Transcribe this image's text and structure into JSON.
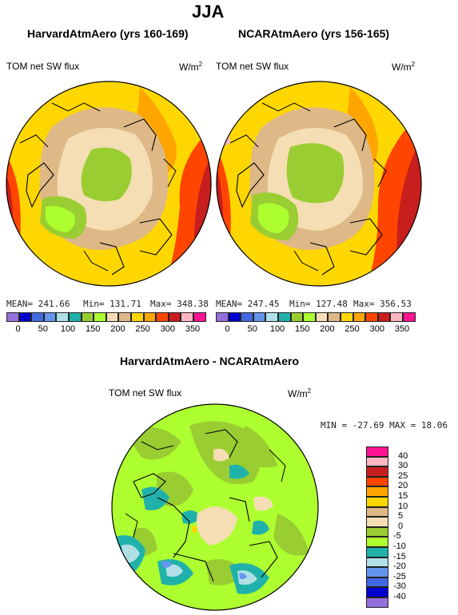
{
  "page": {
    "season_title": "JJA"
  },
  "panels": [
    {
      "title": "HarvardAtmAero (yrs 160-169)",
      "variable": "TOM net SW flux",
      "units_base": "W/m",
      "units_exp": "2",
      "stats": {
        "mean": "MEAN= 241.66",
        "min": "Min= 131.71",
        "max": "Max= 348.38"
      }
    },
    {
      "title": "NCARAtmAero (yrs 156-165)",
      "variable": "TOM net SW flux",
      "units_base": "W/m",
      "units_exp": "2",
      "stats": {
        "mean": "MEAN= 247.45",
        "min": "Min= 127.48",
        "max": "Max= 356.53"
      }
    }
  ],
  "abs_colorbar": {
    "colors": [
      "#9370db",
      "#0000cd",
      "#4169e1",
      "#6495ed",
      "#b0e0e6",
      "#20b2aa",
      "#9acd32",
      "#adff2f",
      "#f5deb3",
      "#deb887",
      "#ffd700",
      "#ffa500",
      "#ff4500",
      "#c81e1e",
      "#ffb6c1",
      "#ff1493"
    ],
    "ticks": [
      "0",
      "50",
      "100",
      "150",
      "200",
      "250",
      "300",
      "350"
    ]
  },
  "diff_panel": {
    "title": "HarvardAtmAero - NCARAtmAero",
    "variable": "TOM net SW flux",
    "units_base": "W/m",
    "units_exp": "2",
    "minmax": "MIN = -27.69  MAX =   18.06"
  },
  "diff_colorbar": {
    "colors_top_to_bottom": [
      "#ff1493",
      "#ffb6c1",
      "#c81e1e",
      "#ff4500",
      "#ffa500",
      "#ffd700",
      "#deb887",
      "#f5deb3",
      "#9acd32",
      "#adff2f",
      "#20b2aa",
      "#b0e0e6",
      "#6495ed",
      "#4169e1",
      "#0000cd",
      "#9370db"
    ],
    "labels_top_to_bottom": [
      "40",
      "30",
      "25",
      "20",
      "15",
      "10",
      "5",
      "0",
      "-5",
      "-10",
      "-15",
      "-20",
      "-25",
      "-30",
      "-40"
    ]
  }
}
